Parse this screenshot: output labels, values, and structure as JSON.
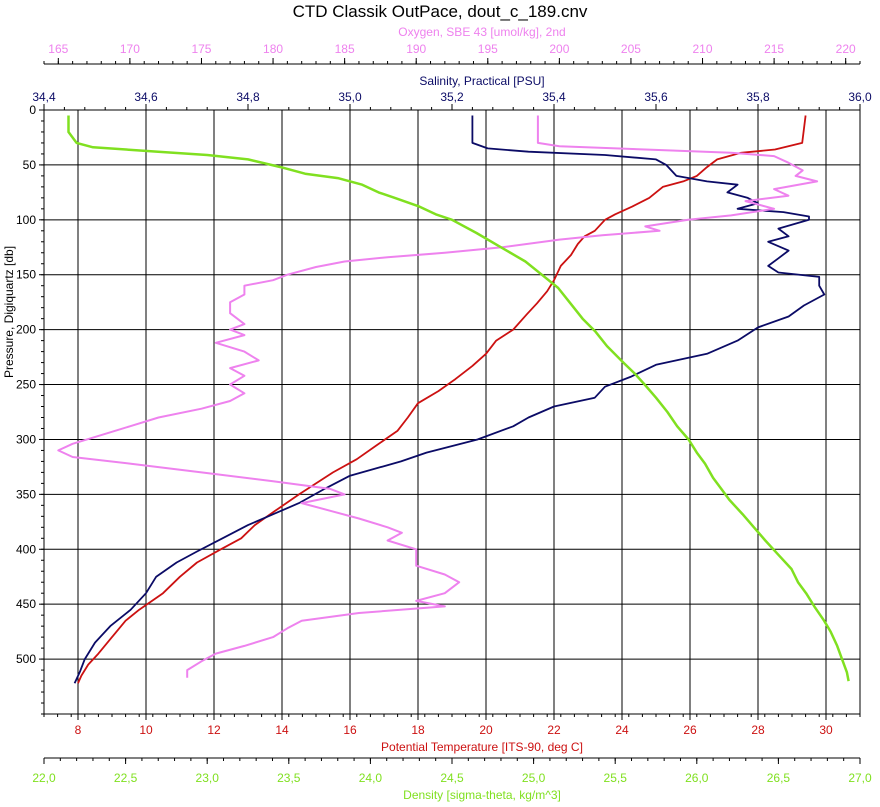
{
  "title": "CTD Classik OutPace, dout_c_189.cnv",
  "colors": {
    "temperature": "#cc1111",
    "salinity": "#0b0b66",
    "oxygen": "#ee82ee",
    "density": "#80e020",
    "axis": "#000000",
    "grid": "#000000"
  },
  "chart_data": {
    "type": "line",
    "title": "CTD Classik OutPace, dout_c_189.cnv",
    "y_axis": {
      "label": "Pressure, Digiquartz [db]",
      "range": [
        0,
        550
      ],
      "inverted": true,
      "ticks": [
        "0",
        "50",
        "100",
        "150",
        "200",
        "250",
        "300",
        "350",
        "400",
        "450",
        "500"
      ]
    },
    "x_axes": [
      {
        "id": "oxygen",
        "label": "Oxygen, SBE 43 [umol/kg], 2nd",
        "position": "top-outer",
        "range": [
          164,
          221
        ],
        "ticks": [
          "165",
          "170",
          "175",
          "180",
          "185",
          "190",
          "195",
          "200",
          "205",
          "210",
          "215",
          "220"
        ]
      },
      {
        "id": "salinity",
        "label": "Salinity, Practical [PSU]",
        "position": "top-inner",
        "range": [
          34.4,
          36.0
        ],
        "ticks": [
          "34,4",
          "34,6",
          "34,8",
          "35,0",
          "35,2",
          "35,4",
          "35,6",
          "35,8",
          "36,0"
        ]
      },
      {
        "id": "temperature",
        "label": "Potential Temperature [ITS-90, deg C]",
        "position": "bottom-inner",
        "range": [
          7,
          31
        ],
        "ticks": [
          "8",
          "10",
          "12",
          "14",
          "16",
          "18",
          "20",
          "22",
          "24",
          "26",
          "28",
          "30"
        ]
      },
      {
        "id": "density",
        "label": "Density [sigma-theta, kg/m^3]",
        "position": "bottom-outer",
        "range": [
          22.0,
          27.0
        ],
        "ticks": [
          "22,0",
          "22,5",
          "23,0",
          "23,5",
          "24,0",
          "24,5",
          "25,0",
          "25,5",
          "26,0",
          "26,5",
          "27,0"
        ]
      }
    ],
    "grid": true,
    "series": [
      {
        "axis": "temperature",
        "points": [
          [
            29.4,
            5
          ],
          [
            29.3,
            30
          ],
          [
            28.5,
            36
          ],
          [
            27.5,
            39
          ],
          [
            26.8,
            45
          ],
          [
            26.5,
            52
          ],
          [
            26.2,
            60
          ],
          [
            25.8,
            65
          ],
          [
            25.2,
            70
          ],
          [
            24.8,
            80
          ],
          [
            24.3,
            88
          ],
          [
            23.8,
            95
          ],
          [
            23.5,
            100
          ],
          [
            23.2,
            110
          ],
          [
            22.9,
            115
          ],
          [
            22.7,
            122
          ],
          [
            22.5,
            132
          ],
          [
            22.2,
            142
          ],
          [
            22.0,
            155
          ],
          [
            21.8,
            165
          ],
          [
            21.5,
            176
          ],
          [
            21.2,
            186
          ],
          [
            20.8,
            200
          ],
          [
            20.3,
            210
          ],
          [
            20.0,
            222
          ],
          [
            19.6,
            233
          ],
          [
            19.1,
            245
          ],
          [
            18.6,
            256
          ],
          [
            18.0,
            267
          ],
          [
            17.7,
            280
          ],
          [
            17.4,
            292
          ],
          [
            16.8,
            305
          ],
          [
            16.2,
            318
          ],
          [
            15.5,
            330
          ],
          [
            15.0,
            340
          ],
          [
            14.5,
            350
          ],
          [
            13.8,
            365
          ],
          [
            13.2,
            378
          ],
          [
            12.8,
            390
          ],
          [
            12.2,
            400
          ],
          [
            11.5,
            412
          ],
          [
            11.0,
            425
          ],
          [
            10.5,
            440
          ],
          [
            9.8,
            455
          ],
          [
            9.4,
            465
          ],
          [
            9.0,
            480
          ],
          [
            8.6,
            495
          ],
          [
            8.3,
            505
          ],
          [
            8.1,
            515
          ],
          [
            8.0,
            522
          ]
        ]
      },
      {
        "axis": "salinity",
        "points": [
          [
            35.24,
            5
          ],
          [
            35.24,
            30
          ],
          [
            35.27,
            35
          ],
          [
            35.35,
            38
          ],
          [
            35.5,
            41
          ],
          [
            35.6,
            45
          ],
          [
            35.62,
            50
          ],
          [
            35.64,
            60
          ],
          [
            35.7,
            65
          ],
          [
            35.76,
            68
          ],
          [
            35.74,
            75
          ],
          [
            35.78,
            80
          ],
          [
            35.8,
            85
          ],
          [
            35.76,
            90
          ],
          [
            35.85,
            93
          ],
          [
            35.9,
            97
          ],
          [
            35.9,
            100
          ],
          [
            35.84,
            108
          ],
          [
            35.86,
            115
          ],
          [
            35.82,
            120
          ],
          [
            35.86,
            128
          ],
          [
            35.84,
            135
          ],
          [
            35.82,
            142
          ],
          [
            35.84,
            148
          ],
          [
            35.92,
            152
          ],
          [
            35.92,
            160
          ],
          [
            35.93,
            168
          ],
          [
            35.89,
            178
          ],
          [
            35.86,
            188
          ],
          [
            35.8,
            198
          ],
          [
            35.76,
            210
          ],
          [
            35.7,
            222
          ],
          [
            35.6,
            232
          ],
          [
            35.55,
            243
          ],
          [
            35.5,
            252
          ],
          [
            35.48,
            262
          ],
          [
            35.4,
            270
          ],
          [
            35.35,
            280
          ],
          [
            35.32,
            288
          ],
          [
            35.25,
            300
          ],
          [
            35.15,
            312
          ],
          [
            35.1,
            320
          ],
          [
            35.0,
            333
          ],
          [
            34.95,
            345
          ],
          [
            34.9,
            358
          ],
          [
            34.85,
            368
          ],
          [
            34.8,
            378
          ],
          [
            34.75,
            390
          ],
          [
            34.7,
            402
          ],
          [
            34.66,
            412
          ],
          [
            34.62,
            425
          ],
          [
            34.6,
            440
          ],
          [
            34.57,
            455
          ],
          [
            34.53,
            470
          ],
          [
            34.5,
            485
          ],
          [
            34.48,
            500
          ],
          [
            34.47,
            512
          ],
          [
            34.46,
            522
          ]
        ]
      },
      {
        "axis": "oxygen",
        "points": [
          [
            198.5,
            5
          ],
          [
            198.5,
            20
          ],
          [
            198.5,
            30
          ],
          [
            200,
            33
          ],
          [
            206,
            36
          ],
          [
            212,
            39
          ],
          [
            215,
            42
          ],
          [
            216,
            48
          ],
          [
            217,
            55
          ],
          [
            216.5,
            60
          ],
          [
            218,
            65
          ],
          [
            215,
            72
          ],
          [
            216,
            78
          ],
          [
            213,
            83
          ],
          [
            215,
            90
          ],
          [
            212,
            96
          ],
          [
            209,
            100
          ],
          [
            206,
            106
          ],
          [
            207,
            110
          ],
          [
            203,
            114
          ],
          [
            200,
            118
          ],
          [
            196,
            125
          ],
          [
            192,
            130
          ],
          [
            188,
            134
          ],
          [
            185,
            138
          ],
          [
            183,
            143
          ],
          [
            181,
            150
          ],
          [
            180,
            155
          ],
          [
            178,
            160
          ],
          [
            178,
            168
          ],
          [
            177,
            175
          ],
          [
            177,
            185
          ],
          [
            178,
            195
          ],
          [
            177,
            200
          ],
          [
            178,
            205
          ],
          [
            176,
            212
          ],
          [
            178,
            220
          ],
          [
            179,
            228
          ],
          [
            177,
            235
          ],
          [
            178,
            242
          ],
          [
            177,
            250
          ],
          [
            178,
            258
          ],
          [
            177,
            265
          ],
          [
            175,
            272
          ],
          [
            172,
            280
          ],
          [
            170,
            288
          ],
          [
            168,
            296
          ],
          [
            166,
            304
          ],
          [
            165,
            310
          ],
          [
            166,
            316
          ],
          [
            170,
            322
          ],
          [
            175,
            330
          ],
          [
            180,
            338
          ],
          [
            184,
            345
          ],
          [
            185,
            350
          ],
          [
            182,
            358
          ],
          [
            184,
            365
          ],
          [
            186,
            372
          ],
          [
            188,
            380
          ],
          [
            189,
            385
          ],
          [
            188,
            392
          ],
          [
            190,
            400
          ],
          [
            190,
            408
          ],
          [
            190,
            415
          ],
          [
            192,
            423
          ],
          [
            193,
            430
          ],
          [
            192,
            440
          ],
          [
            190,
            447
          ],
          [
            192,
            452
          ],
          [
            186,
            458
          ],
          [
            182,
            465
          ],
          [
            181,
            472
          ],
          [
            180,
            480
          ],
          [
            178,
            488
          ],
          [
            176,
            495
          ],
          [
            175,
            502
          ],
          [
            174,
            510
          ],
          [
            174,
            517
          ]
        ]
      },
      {
        "axis": "density",
        "points": [
          [
            22.15,
            5
          ],
          [
            22.15,
            20
          ],
          [
            22.2,
            30
          ],
          [
            22.3,
            34
          ],
          [
            22.7,
            38
          ],
          [
            23.0,
            41
          ],
          [
            23.25,
            45
          ],
          [
            23.45,
            52
          ],
          [
            23.6,
            58
          ],
          [
            23.8,
            62
          ],
          [
            23.95,
            68
          ],
          [
            24.05,
            75
          ],
          [
            24.15,
            80
          ],
          [
            24.3,
            88
          ],
          [
            24.4,
            95
          ],
          [
            24.5,
            100
          ],
          [
            24.65,
            112
          ],
          [
            24.8,
            125
          ],
          [
            24.95,
            138
          ],
          [
            25.05,
            150
          ],
          [
            25.15,
            162
          ],
          [
            25.22,
            175
          ],
          [
            25.3,
            190
          ],
          [
            25.38,
            202
          ],
          [
            25.45,
            215
          ],
          [
            25.55,
            230
          ],
          [
            25.62,
            240
          ],
          [
            25.68,
            250
          ],
          [
            25.75,
            262
          ],
          [
            25.82,
            275
          ],
          [
            25.88,
            288
          ],
          [
            25.95,
            300
          ],
          [
            26.0,
            312
          ],
          [
            26.05,
            322
          ],
          [
            26.1,
            335
          ],
          [
            26.15,
            345
          ],
          [
            26.2,
            355
          ],
          [
            26.28,
            368
          ],
          [
            26.35,
            380
          ],
          [
            26.42,
            392
          ],
          [
            26.5,
            405
          ],
          [
            26.58,
            418
          ],
          [
            26.62,
            430
          ],
          [
            26.67,
            440
          ],
          [
            26.72,
            452
          ],
          [
            26.78,
            465
          ],
          [
            26.82,
            475
          ],
          [
            26.86,
            488
          ],
          [
            26.89,
            500
          ],
          [
            26.92,
            512
          ],
          [
            26.93,
            520
          ]
        ]
      }
    ]
  }
}
